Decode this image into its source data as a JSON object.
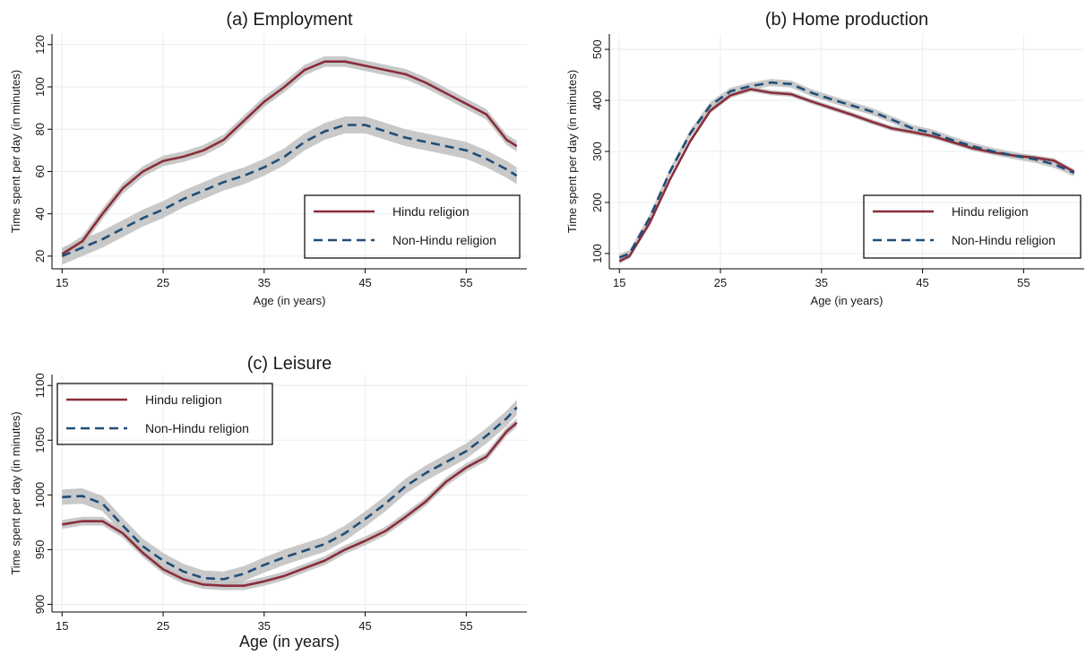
{
  "colors": {
    "hindu": "#8b2d3a",
    "non_hindu": "#1f4e79",
    "ci_band": "#bfbfbf",
    "grid": "#e6eef3"
  },
  "chart_data": [
    {
      "type": "line",
      "title": "(a) Employment",
      "xlabel": "Age (in years)",
      "ylabel": "Time spent per day (in minutes)",
      "xlim": [
        14,
        61
      ],
      "ylim": [
        14,
        125
      ],
      "xticks": [
        15,
        25,
        35,
        45,
        55
      ],
      "yticks": [
        20,
        40,
        60,
        80,
        100,
        120
      ],
      "grid": true,
      "legend_position": "bottom-right",
      "legend": [
        "Hindu religion",
        "Non-Hindu religion"
      ],
      "x": [
        15,
        17,
        19,
        21,
        23,
        25,
        27,
        29,
        31,
        33,
        35,
        37,
        39,
        41,
        43,
        45,
        47,
        49,
        51,
        53,
        55,
        57,
        59,
        60
      ],
      "series": [
        {
          "name": "Hindu religion",
          "style": "solid",
          "values": [
            21,
            27,
            40,
            52,
            60,
            65,
            67,
            70,
            75,
            84,
            93,
            100,
            108,
            112,
            112,
            110,
            108,
            106,
            102,
            97,
            92,
            87,
            75,
            72
          ],
          "band": 2.5
        },
        {
          "name": "Non-Hindu religion",
          "style": "dashed",
          "values": [
            20,
            24,
            28,
            33,
            38,
            42,
            47,
            51,
            55,
            58,
            62,
            67,
            74,
            79,
            82,
            82,
            79,
            76,
            74,
            72,
            70,
            66,
            61,
            58
          ],
          "band": 4
        }
      ]
    },
    {
      "type": "line",
      "title": "(b) Home production",
      "xlabel": "Age (in years)",
      "ylabel": "Time spent per day (in minutes)",
      "xlim": [
        14,
        61
      ],
      "ylim": [
        70,
        530
      ],
      "xticks": [
        15,
        25,
        35,
        45,
        55
      ],
      "yticks": [
        100,
        200,
        300,
        400,
        500
      ],
      "grid": true,
      "legend_position": "bottom-right",
      "legend": [
        "Hindu religion",
        "Non-Hindu religion"
      ],
      "x": [
        15,
        16,
        18,
        20,
        22,
        24,
        26,
        28,
        30,
        32,
        34,
        36,
        38,
        40,
        42,
        44,
        46,
        48,
        50,
        52,
        54,
        56,
        58,
        60
      ],
      "series": [
        {
          "name": "Hindu religion",
          "style": "solid",
          "values": [
            85,
            95,
            160,
            245,
            320,
            380,
            410,
            422,
            415,
            412,
            398,
            385,
            372,
            358,
            345,
            338,
            330,
            318,
            306,
            298,
            292,
            288,
            282,
            260
          ],
          "band": 5
        },
        {
          "name": "Non-Hindu religion",
          "style": "dashed",
          "values": [
            92,
            100,
            170,
            260,
            335,
            390,
            418,
            428,
            435,
            432,
            415,
            402,
            390,
            378,
            362,
            345,
            336,
            322,
            310,
            300,
            292,
            285,
            275,
            258
          ],
          "band": 7
        }
      ]
    },
    {
      "type": "line",
      "title": "(c) Leisure",
      "xlabel": "Age (in years)",
      "ylabel": "Time spent per day (in minutes)",
      "xlim": [
        14,
        61
      ],
      "ylim": [
        893,
        1110
      ],
      "xticks": [
        15,
        25,
        35,
        45,
        55
      ],
      "yticks": [
        900,
        950,
        1000,
        1050,
        1100
      ],
      "grid": true,
      "legend_position": "top-left",
      "legend": [
        "Hindu religion",
        "Non-Hindu religion"
      ],
      "x": [
        15,
        17,
        19,
        21,
        23,
        25,
        27,
        29,
        31,
        33,
        35,
        37,
        39,
        41,
        43,
        45,
        47,
        49,
        51,
        53,
        55,
        57,
        59,
        60
      ],
      "series": [
        {
          "name": "Hindu religion",
          "style": "solid",
          "values": [
            973,
            976,
            976,
            965,
            947,
            932,
            923,
            918,
            917,
            917,
            921,
            926,
            933,
            940,
            950,
            958,
            967,
            980,
            994,
            1012,
            1025,
            1035,
            1058,
            1066
          ],
          "band": 4
        },
        {
          "name": "Non-Hindu religion",
          "style": "dashed",
          "values": [
            998,
            999,
            992,
            972,
            953,
            940,
            930,
            924,
            923,
            928,
            936,
            943,
            949,
            955,
            965,
            978,
            992,
            1008,
            1020,
            1030,
            1040,
            1054,
            1070,
            1080
          ],
          "band": 7
        }
      ]
    }
  ]
}
